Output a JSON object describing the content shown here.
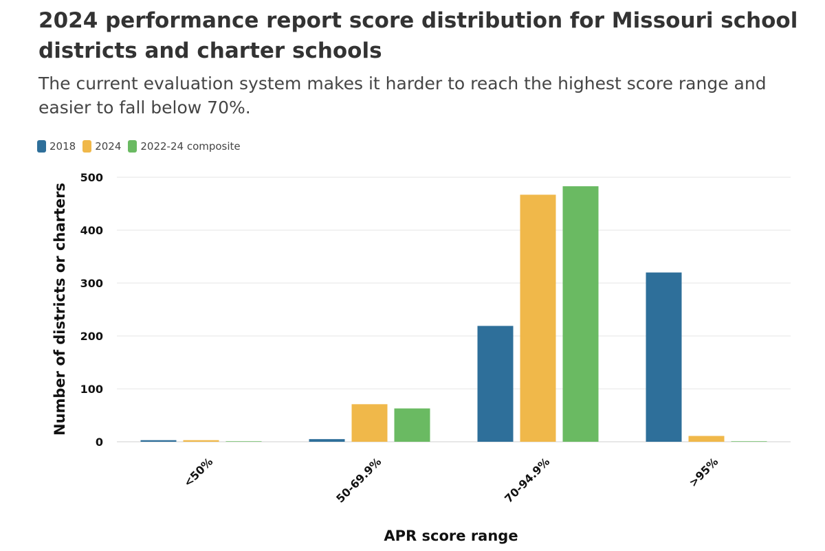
{
  "chart_data": {
    "type": "bar",
    "title": "2024 performance report score distribution for Missouri school districts and charter schools",
    "subtitle": "The current evaluation system makes it harder to reach the highest score range and easier to fall below 70%.",
    "xlabel": "APR score range",
    "ylabel": "Number of districts or charters",
    "categories": [
      "<50%",
      "50-69.9%",
      "70-94.9%",
      ">95%"
    ],
    "series": [
      {
        "name": "2018",
        "color": "#2e6f9a",
        "values": [
          3,
          5,
          219,
          320
        ]
      },
      {
        "name": "2024",
        "color": "#f0b84a",
        "values": [
          3,
          71,
          467,
          11
        ]
      },
      {
        "name": "2022-24 composite",
        "color": "#6aba62",
        "values": [
          1,
          63,
          483,
          1
        ]
      }
    ],
    "ylim": [
      0,
      500
    ],
    "yticks": [
      0,
      100,
      200,
      300,
      400,
      500
    ],
    "grid": true,
    "legend_position": "top-left"
  }
}
